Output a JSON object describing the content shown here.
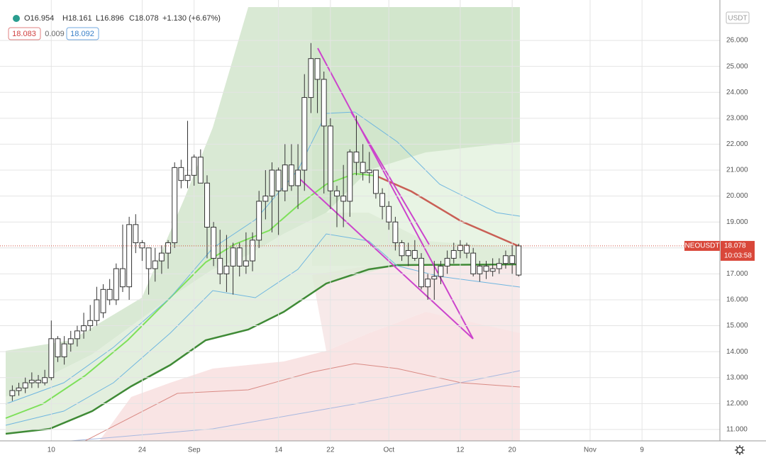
{
  "chart_data": {
    "type": "candlestick",
    "symbol": "NEOUSDT",
    "currency": "USDT",
    "legend": {
      "open": "O16.954",
      "high": "H18.161",
      "low": "L16.896",
      "close": "C18.078",
      "change": "+1.130 (+6.67%)"
    },
    "indicator": {
      "upper": "18.083",
      "mid": "0.009",
      "lower": "18.092"
    },
    "last_price": 18.078,
    "countdown": "10:03:58",
    "candles": [
      [
        12.3,
        12.7,
        12.1,
        12.5
      ],
      [
        12.5,
        12.8,
        12.3,
        12.6
      ],
      [
        12.6,
        13.0,
        12.4,
        12.8
      ],
      [
        12.8,
        13.2,
        12.6,
        12.9
      ],
      [
        12.9,
        13.1,
        12.6,
        12.8
      ],
      [
        12.8,
        13.3,
        12.7,
        13.0
      ],
      [
        13.0,
        15.2,
        12.9,
        14.5
      ],
      [
        14.5,
        14.6,
        13.6,
        13.8
      ],
      [
        13.8,
        14.6,
        13.5,
        14.3
      ],
      [
        14.3,
        14.8,
        14.0,
        14.5
      ],
      [
        14.5,
        15.0,
        14.2,
        14.8
      ],
      [
        14.8,
        15.5,
        14.5,
        15.0
      ],
      [
        15.0,
        15.8,
        14.8,
        15.2
      ],
      [
        15.2,
        16.5,
        15.0,
        16.0
      ],
      [
        15.5,
        16.6,
        15.3,
        16.4
      ],
      [
        16.4,
        16.8,
        15.8,
        16.0
      ],
      [
        16.0,
        17.4,
        15.8,
        17.2
      ],
      [
        17.2,
        18.9,
        16.3,
        16.5
      ],
      [
        16.5,
        19.2,
        16.0,
        18.9
      ],
      [
        18.9,
        19.3,
        17.8,
        18.2
      ],
      [
        18.2,
        18.3,
        17.5,
        18.0
      ],
      [
        18.0,
        18.0,
        16.2,
        17.2
      ],
      [
        17.2,
        18.0,
        16.7,
        17.5
      ],
      [
        17.5,
        18.1,
        17.0,
        17.8
      ],
      [
        17.8,
        18.3,
        17.2,
        18.2
      ],
      [
        18.2,
        21.3,
        18.0,
        21.1
      ],
      [
        21.1,
        21.4,
        20.3,
        20.6
      ],
      [
        20.6,
        22.9,
        20.3,
        20.8
      ],
      [
        20.8,
        21.6,
        20.4,
        21.5
      ],
      [
        21.5,
        21.8,
        20.5,
        20.5
      ],
      [
        20.5,
        20.8,
        17.6,
        18.8
      ],
      [
        18.8,
        19.0,
        17.3,
        17.6
      ],
      [
        17.6,
        18.7,
        16.6,
        17.0
      ],
      [
        17.0,
        18.5,
        16.3,
        17.3
      ],
      [
        17.3,
        18.2,
        16.2,
        18.0
      ],
      [
        18.0,
        18.2,
        16.9,
        17.3
      ],
      [
        17.3,
        18.6,
        17.0,
        17.5
      ],
      [
        17.5,
        18.6,
        17.1,
        18.3
      ],
      [
        18.3,
        20.2,
        18.0,
        19.8
      ],
      [
        19.8,
        21.0,
        19.1,
        20.0
      ],
      [
        20.0,
        21.3,
        18.6,
        21.0
      ],
      [
        21.0,
        21.1,
        18.5,
        20.2
      ],
      [
        20.2,
        22.0,
        19.8,
        21.2
      ],
      [
        21.2,
        22.0,
        20.2,
        20.4
      ],
      [
        20.4,
        22.0,
        19.5,
        21.0
      ],
      [
        21.0,
        24.7,
        20.2,
        23.8
      ],
      [
        23.8,
        25.9,
        23.2,
        25.3
      ],
      [
        25.3,
        25.3,
        23.2,
        24.5
      ],
      [
        24.5,
        24.8,
        20.1,
        22.7
      ],
      [
        22.7,
        23.0,
        19.5,
        20.2
      ],
      [
        20.2,
        20.4,
        18.8,
        20.0
      ],
      [
        20.0,
        21.2,
        18.8,
        19.8
      ],
      [
        19.8,
        21.8,
        19.2,
        21.7
      ],
      [
        21.7,
        23.1,
        20.8,
        21.3
      ],
      [
        21.3,
        22.0,
        20.6,
        20.9
      ],
      [
        20.9,
        21.7,
        20.5,
        21.0
      ],
      [
        21.0,
        21.0,
        19.9,
        20.1
      ],
      [
        20.1,
        20.3,
        19.1,
        19.6
      ],
      [
        19.6,
        19.8,
        18.7,
        19.0
      ],
      [
        19.0,
        19.2,
        17.9,
        18.2
      ],
      [
        18.2,
        18.3,
        17.5,
        17.7
      ],
      [
        17.7,
        18.2,
        17.3,
        17.9
      ],
      [
        17.9,
        18.3,
        17.5,
        17.6
      ],
      [
        17.6,
        17.8,
        16.4,
        16.5
      ],
      [
        16.5,
        17.0,
        16.0,
        16.8
      ],
      [
        16.8,
        17.5,
        16.0,
        16.9
      ],
      [
        16.9,
        17.5,
        16.6,
        17.3
      ],
      [
        17.3,
        17.9,
        17.0,
        17.6
      ],
      [
        17.6,
        18.2,
        17.4,
        17.9
      ],
      [
        17.9,
        18.3,
        17.6,
        18.1
      ],
      [
        18.1,
        18.2,
        17.6,
        17.8
      ],
      [
        17.8,
        18.0,
        16.9,
        17.0
      ],
      [
        17.0,
        17.5,
        16.7,
        17.3
      ],
      [
        17.3,
        17.5,
        16.8,
        17.1
      ],
      [
        17.1,
        17.6,
        16.9,
        17.2
      ],
      [
        17.2,
        17.6,
        17.0,
        17.4
      ],
      [
        17.4,
        17.9,
        17.2,
        17.7
      ],
      [
        17.7,
        18.1,
        17.0,
        17.4
      ],
      [
        16.954,
        18.161,
        16.896,
        18.078
      ]
    ],
    "xlim": [
      -1.9,
      109
    ],
    "xticks": [
      {
        "value": 6,
        "label": "10"
      },
      {
        "value": 20,
        "label": "24"
      },
      {
        "value": 28,
        "label": "Sep"
      },
      {
        "value": 41,
        "label": "14"
      },
      {
        "value": 49,
        "label": "22"
      },
      {
        "value": 58,
        "label": "Oct"
      },
      {
        "value": 69,
        "label": "12"
      },
      {
        "value": 77,
        "label": "20"
      },
      {
        "value": 89,
        "label": "Nov"
      },
      {
        "value": 97,
        "label": "9"
      }
    ],
    "ylim": [
      10.56,
      27.56
    ],
    "yticks": [
      {
        "value": 11,
        "label": "11.000"
      },
      {
        "value": 12,
        "label": "12.000"
      },
      {
        "value": 13,
        "label": "13.000"
      },
      {
        "value": 14,
        "label": "14.000"
      },
      {
        "value": 15,
        "label": "15.000"
      },
      {
        "value": 16,
        "label": "16.000"
      },
      {
        "value": 17,
        "label": "17.000"
      },
      {
        "value": 18,
        "label": "18.000"
      },
      {
        "value": 19,
        "label": "19.000"
      },
      {
        "value": 20,
        "label": "20.000"
      },
      {
        "value": 21,
        "label": "21.000"
      },
      {
        "value": 22,
        "label": "22.000"
      },
      {
        "value": 23,
        "label": "23.000"
      },
      {
        "value": 24,
        "label": "24.000"
      },
      {
        "value": 25,
        "label": "25.000"
      },
      {
        "value": 26,
        "label": "26.000"
      }
    ],
    "grid": true,
    "candle_color": "#ffffff",
    "wick_color": "#333333"
  }
}
